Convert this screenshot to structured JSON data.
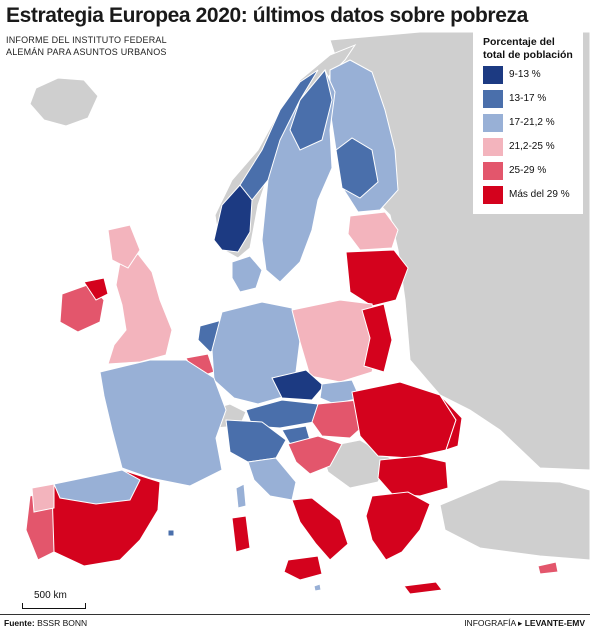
{
  "header": {
    "title": "Estrategia Europea 2020: últimos datos sobre pobreza",
    "subtitle_line1": "INFORME DEL INSTITUTO FEDERAL",
    "subtitle_line2": "ALEMÁN PARA ASUNTOS URBANOS"
  },
  "legend": {
    "title_line1": "Porcentaje del",
    "title_line2": "total de población",
    "items": [
      {
        "label": "9-13 %",
        "color": "#1c3a82"
      },
      {
        "label": "13-17 %",
        "color": "#4a6fab"
      },
      {
        "label": "17-21,2 %",
        "color": "#98b0d6"
      },
      {
        "label": "21,2-25 %",
        "color": "#f3b4bd"
      },
      {
        "label": "25-29 %",
        "color": "#e3566c"
      },
      {
        "label": "Más del 29 %",
        "color": "#d4021d"
      }
    ]
  },
  "colors": {
    "sea": "#ffffff",
    "non_eu_land": "#cfcfcf",
    "border": "#ffffff"
  },
  "scale": {
    "label": "500 km"
  },
  "footer": {
    "source_label": "Fuente:",
    "source_value": "BSSR BONN",
    "credit_prefix": "INFOGRAFÍA",
    "credit_arrow": "▸",
    "credit_brand": "LEVANTE-EMV"
  }
}
